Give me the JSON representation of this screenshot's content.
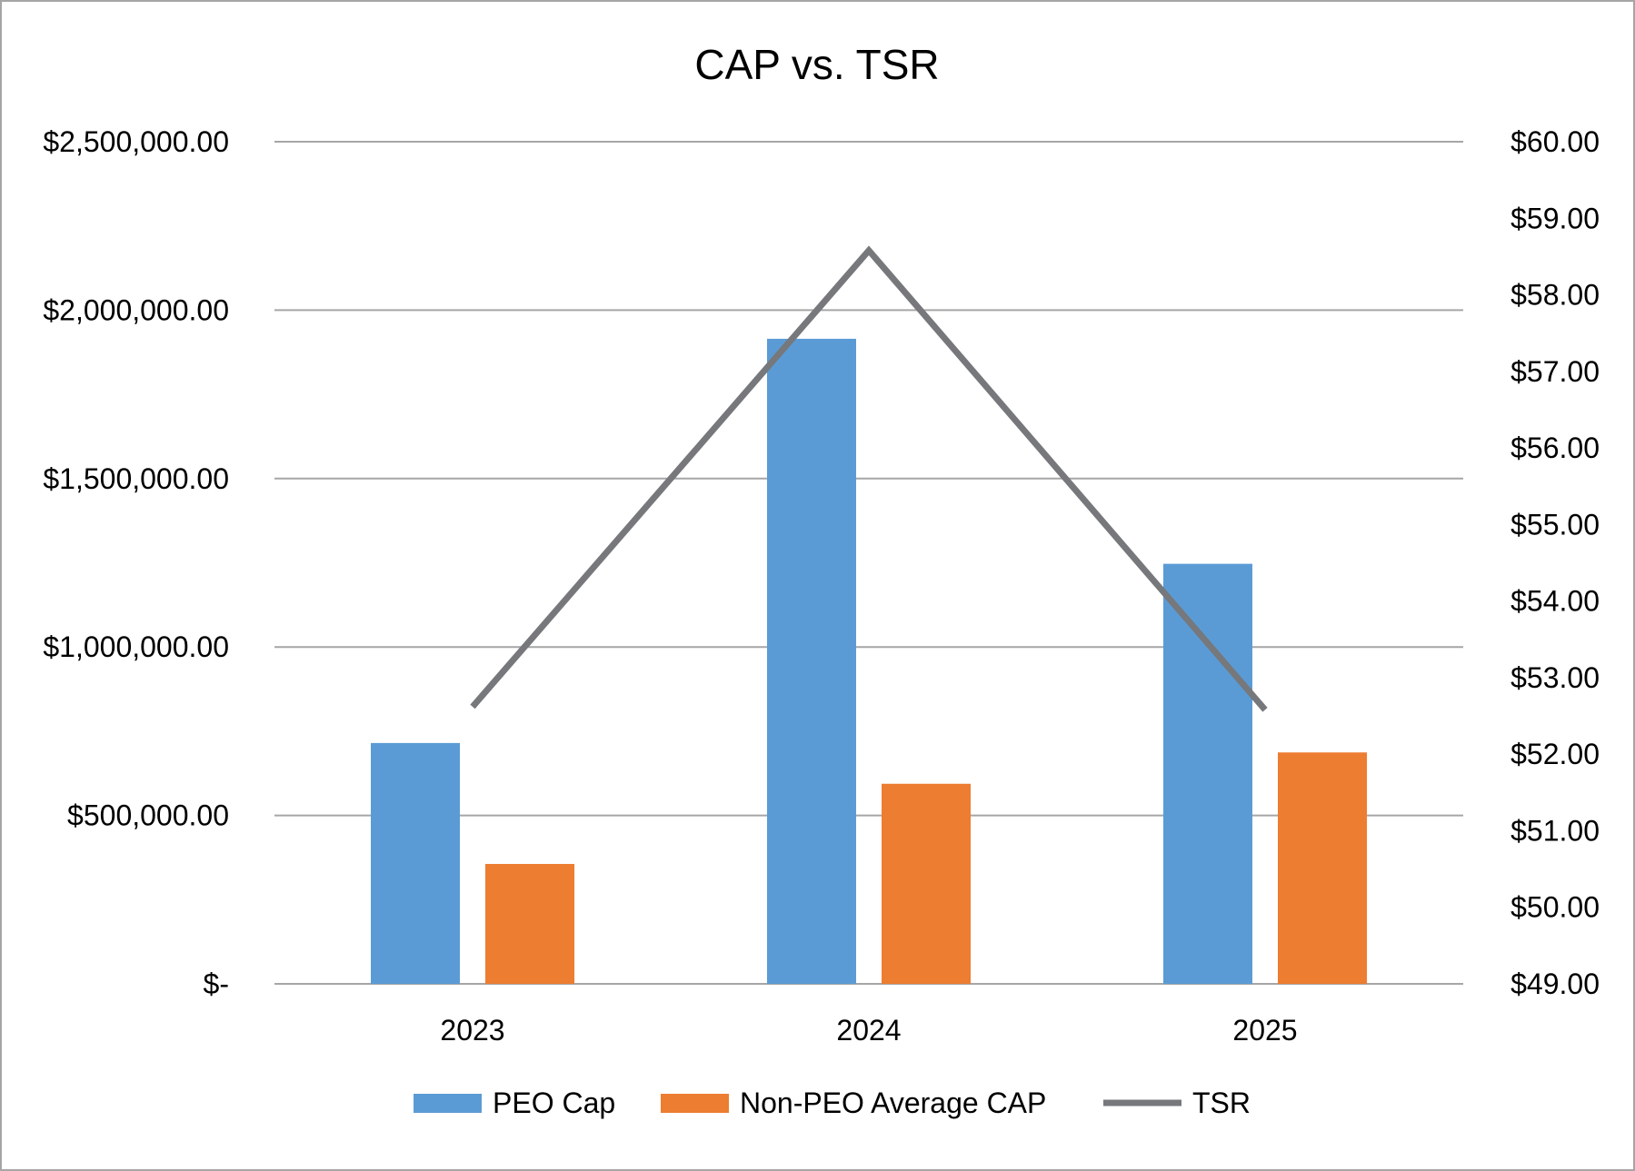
{
  "chart_data": {
    "type": "bar",
    "title": "CAP vs. TSR",
    "categories": [
      "2023",
      "2024",
      "2025"
    ],
    "series": [
      {
        "name": "PEO Cap",
        "kind": "bar",
        "axis": "left",
        "color": "#5b9bd5",
        "values": [
          715000,
          1915000,
          1247000
        ]
      },
      {
        "name": "Non-PEO Average CAP",
        "kind": "bar",
        "axis": "left",
        "color": "#ed7d31",
        "values": [
          356000,
          594000,
          687000
        ]
      },
      {
        "name": "TSR",
        "kind": "line",
        "axis": "right",
        "color": "#76787b",
        "values": [
          52.62,
          58.58,
          52.58
        ]
      }
    ],
    "left_axis": {
      "ylim": [
        0,
        2500000
      ],
      "ticks": [
        0,
        500000,
        1000000,
        1500000,
        2000000,
        2500000
      ],
      "tick_labels": [
        "$-",
        "$500,000.00",
        "$1,000,000.00",
        "$1,500,000.00",
        "$2,000,000.00",
        "$2,500,000.00"
      ]
    },
    "right_axis": {
      "ylim": [
        49,
        60
      ],
      "ticks": [
        49,
        50,
        51,
        52,
        53,
        54,
        55,
        56,
        57,
        58,
        59,
        60
      ],
      "tick_labels": [
        "$49.00",
        "$50.00",
        "$51.00",
        "$52.00",
        "$53.00",
        "$54.00",
        "$55.00",
        "$56.00",
        "$57.00",
        "$58.00",
        "$59.00",
        "$60.00"
      ]
    },
    "grid": true,
    "gridline_color": "#a6a6a6",
    "legend_position": "bottom",
    "xlabel": "",
    "ylabel": ""
  }
}
